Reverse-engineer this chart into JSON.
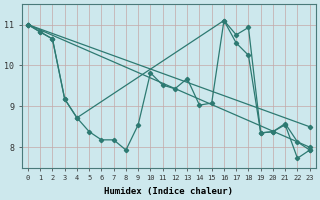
{
  "xlabel": "Humidex (Indice chaleur)",
  "xlim": [
    -0.5,
    23.5
  ],
  "ylim": [
    7.5,
    11.5
  ],
  "xticks": [
    0,
    1,
    2,
    3,
    4,
    5,
    6,
    7,
    8,
    9,
    10,
    11,
    12,
    13,
    14,
    15,
    16,
    17,
    18,
    19,
    20,
    21,
    22,
    23
  ],
  "yticks": [
    8,
    9,
    10,
    11
  ],
  "bg_color": "#cde8ed",
  "line_color": "#2d7a72",
  "grid_color": "#c4a8a8",
  "lines": [
    {
      "x": [
        0,
        1,
        2,
        3,
        4,
        5,
        6,
        7,
        8,
        9,
        10,
        11,
        12,
        13,
        14,
        15,
        16,
        17,
        18,
        19,
        20,
        21,
        22,
        23
      ],
      "y": [
        11.0,
        10.82,
        10.65,
        9.18,
        8.72,
        8.38,
        8.18,
        8.18,
        7.93,
        8.55,
        9.82,
        9.52,
        9.43,
        9.68,
        9.03,
        9.08,
        11.1,
        10.75,
        10.93,
        8.35,
        8.38,
        8.58,
        8.13,
        7.93
      ]
    },
    {
      "x": [
        0,
        1,
        2,
        3,
        4,
        16,
        17,
        18,
        19,
        20,
        21,
        22,
        23
      ],
      "y": [
        11.0,
        10.82,
        10.65,
        9.18,
        8.72,
        11.1,
        10.55,
        10.25,
        8.35,
        8.38,
        8.55,
        7.73,
        7.93
      ]
    },
    {
      "x": [
        0,
        23
      ],
      "y": [
        11.0,
        8.0
      ]
    },
    {
      "x": [
        0,
        23
      ],
      "y": [
        11.0,
        8.5
      ]
    }
  ]
}
